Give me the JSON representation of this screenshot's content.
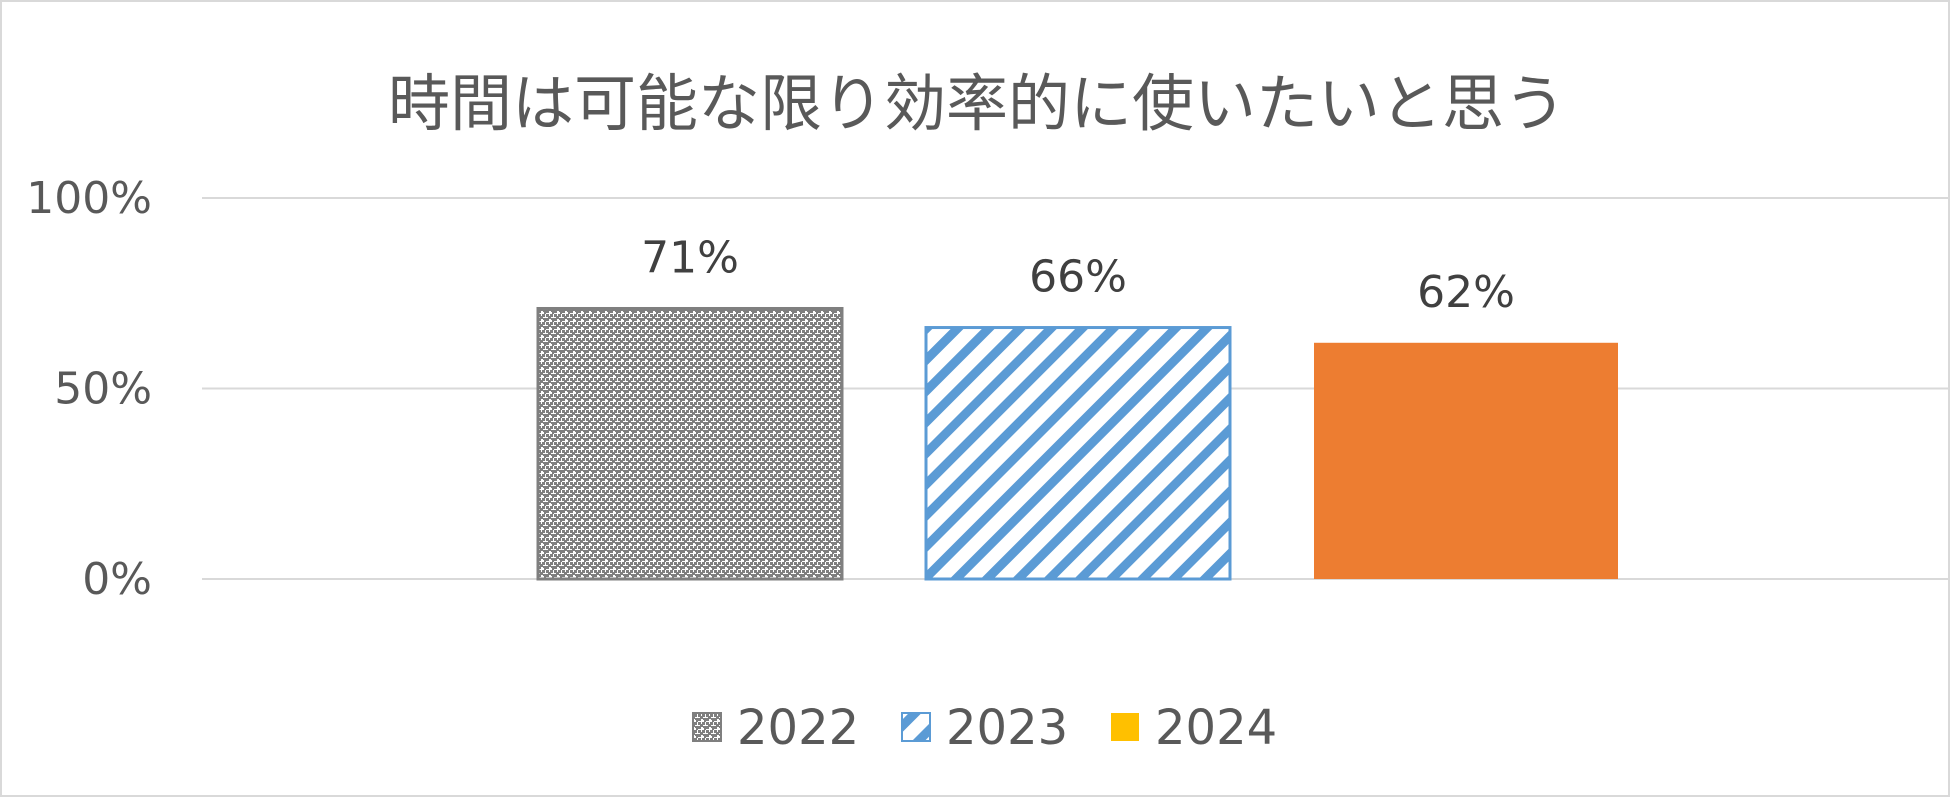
{
  "chart_data": {
    "type": "bar",
    "title": "時間は可能な限り効率的に使いたいと思う",
    "categories": [
      "2022",
      "2023",
      "2024"
    ],
    "values": [
      71,
      66,
      62
    ],
    "value_labels": [
      "71%",
      "66%",
      "62%"
    ],
    "ylim": [
      0,
      100
    ],
    "yticks": [
      0,
      50,
      100
    ],
    "ytick_labels": [
      "0%",
      "50%",
      "100%"
    ],
    "xlabel": "",
    "ylabel": "",
    "grid": true,
    "legend_position": "bottom",
    "series": [
      {
        "name": "2022",
        "fill": "crosshatch",
        "color": "#7f7f7f"
      },
      {
        "name": "2023",
        "fill": "diagonal-stripes",
        "color": "#5b9bd5"
      },
      {
        "name": "2024",
        "fill": "solid",
        "color": "#ed7d31",
        "legend_color": "#ffc000"
      }
    ],
    "colors": {
      "gridline": "#d9d9d9",
      "text": "#595959",
      "label_text": "#404040"
    }
  }
}
